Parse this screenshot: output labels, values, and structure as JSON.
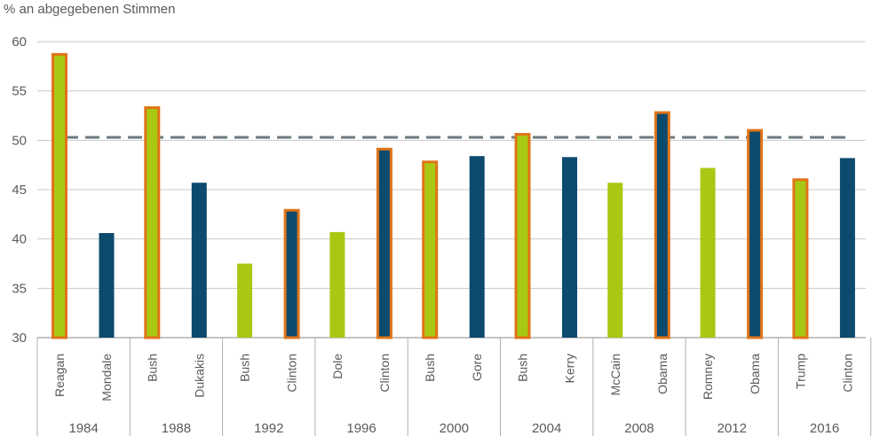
{
  "chart_data": {
    "type": "bar",
    "ylabel": "% an abgegebenen Stimmen",
    "ylim": [
      30,
      60
    ],
    "yticks": [
      30,
      35,
      40,
      45,
      50,
      55,
      60
    ],
    "grid": true,
    "reference_line": 50.3,
    "colors": {
      "republican": "#a8c814",
      "democrat": "#0d4a6e",
      "winner_outline": "#e07418",
      "reference": "#6b7b80",
      "grid": "#c8c8c8",
      "axis_text": "#5a5a5a"
    },
    "groups": [
      {
        "year": "1984",
        "bars": [
          {
            "name": "Reagan",
            "party": "republican",
            "value": 58.8,
            "winner": true
          },
          {
            "name": "Mondale",
            "party": "democrat",
            "value": 40.6,
            "winner": false
          }
        ]
      },
      {
        "year": "1988",
        "bars": [
          {
            "name": "Bush",
            "party": "republican",
            "value": 53.4,
            "winner": true
          },
          {
            "name": "Dukakis",
            "party": "democrat",
            "value": 45.7,
            "winner": false
          }
        ]
      },
      {
        "year": "1992",
        "bars": [
          {
            "name": "Bush",
            "party": "republican",
            "value": 37.5,
            "winner": false
          },
          {
            "name": "Clinton",
            "party": "democrat",
            "value": 43.0,
            "winner": true
          }
        ]
      },
      {
        "year": "1996",
        "bars": [
          {
            "name": "Dole",
            "party": "republican",
            "value": 40.7,
            "winner": false
          },
          {
            "name": "Clinton",
            "party": "democrat",
            "value": 49.2,
            "winner": true
          }
        ]
      },
      {
        "year": "2000",
        "bars": [
          {
            "name": "Bush",
            "party": "republican",
            "value": 47.9,
            "winner": true
          },
          {
            "name": "Gore",
            "party": "democrat",
            "value": 48.4,
            "winner": false
          }
        ]
      },
      {
        "year": "2004",
        "bars": [
          {
            "name": "Bush",
            "party": "republican",
            "value": 50.7,
            "winner": true
          },
          {
            "name": "Kerry",
            "party": "democrat",
            "value": 48.3,
            "winner": false
          }
        ]
      },
      {
        "year": "2008",
        "bars": [
          {
            "name": "McCain",
            "party": "republican",
            "value": 45.7,
            "winner": false
          },
          {
            "name": "Obama",
            "party": "democrat",
            "value": 52.9,
            "winner": true
          }
        ]
      },
      {
        "year": "2012",
        "bars": [
          {
            "name": "Romney",
            "party": "republican",
            "value": 47.2,
            "winner": false
          },
          {
            "name": "Obama",
            "party": "democrat",
            "value": 51.1,
            "winner": true
          }
        ]
      },
      {
        "year": "2016",
        "bars": [
          {
            "name": "Trump",
            "party": "republican",
            "value": 46.1,
            "winner": true
          },
          {
            "name": "Clinton",
            "party": "democrat",
            "value": 48.2,
            "winner": false
          }
        ]
      }
    ]
  }
}
